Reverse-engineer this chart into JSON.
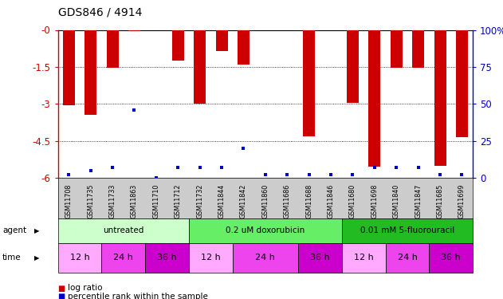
{
  "title": "GDS846 / 4914",
  "samples": [
    "GSM11708",
    "GSM11735",
    "GSM11733",
    "GSM11863",
    "GSM11710",
    "GSM11712",
    "GSM11732",
    "GSM11844",
    "GSM11842",
    "GSM11860",
    "GSM11686",
    "GSM11688",
    "GSM11846",
    "GSM11680",
    "GSM11698",
    "GSM11840",
    "GSM11847",
    "GSM11685",
    "GSM11699"
  ],
  "log_ratio": [
    -3.05,
    -3.45,
    -1.55,
    -0.05,
    0,
    -1.25,
    -3.0,
    -0.85,
    -1.4,
    0,
    0,
    -4.3,
    0,
    -2.95,
    -5.55,
    -1.55,
    -1.55,
    -5.5,
    -4.35
  ],
  "percentile_rank_pct": [
    2,
    5,
    7,
    46,
    0,
    7,
    7,
    7,
    20,
    2,
    2,
    2,
    2,
    2,
    7,
    7,
    7,
    2,
    2
  ],
  "ylim_left": [
    -6,
    0
  ],
  "ylim_right": [
    0,
    100
  ],
  "yticks_left": [
    0,
    -1.5,
    -3,
    -4.5,
    -6
  ],
  "yticks_left_labels": [
    "-0",
    "-1.5",
    "-3",
    "-4.5",
    "-6"
  ],
  "yticks_right": [
    100,
    75,
    50,
    25,
    0
  ],
  "yticks_right_labels": [
    "100%",
    "75",
    "50",
    "25",
    "0"
  ],
  "bar_color": "#cc0000",
  "dot_color": "#0000cc",
  "background_color": "#ffffff",
  "plot_bg_color": "#ffffff",
  "xtick_bg_color": "#cccccc",
  "agent_groups": [
    {
      "label": "untreated",
      "start": 0,
      "end": 6,
      "color": "#ccffcc"
    },
    {
      "label": "0.2 uM doxorubicin",
      "start": 6,
      "end": 13,
      "color": "#66ee66"
    },
    {
      "label": "0.01 mM 5-fluorouracil",
      "start": 13,
      "end": 19,
      "color": "#22bb22"
    }
  ],
  "time_groups": [
    {
      "label": "12 h",
      "start": 0,
      "end": 2,
      "color": "#ffaaff"
    },
    {
      "label": "24 h",
      "start": 2,
      "end": 4,
      "color": "#ee44ee"
    },
    {
      "label": "36 h",
      "start": 4,
      "end": 6,
      "color": "#cc00cc"
    },
    {
      "label": "12 h",
      "start": 6,
      "end": 8,
      "color": "#ffaaff"
    },
    {
      "label": "24 h",
      "start": 8,
      "end": 11,
      "color": "#ee44ee"
    },
    {
      "label": "36 h",
      "start": 11,
      "end": 13,
      "color": "#cc00cc"
    },
    {
      "label": "12 h",
      "start": 13,
      "end": 15,
      "color": "#ffaaff"
    },
    {
      "label": "24 h",
      "start": 15,
      "end": 17,
      "color": "#ee44ee"
    },
    {
      "label": "36 h",
      "start": 17,
      "end": 19,
      "color": "#cc00cc"
    }
  ],
  "legend_red": "log ratio",
  "legend_blue": "percentile rank within the sample",
  "bar_width": 0.55,
  "grid_color": "#000000",
  "tick_color_left": "#cc0000",
  "tick_color_right": "#0000cc",
  "n_samples": 19
}
